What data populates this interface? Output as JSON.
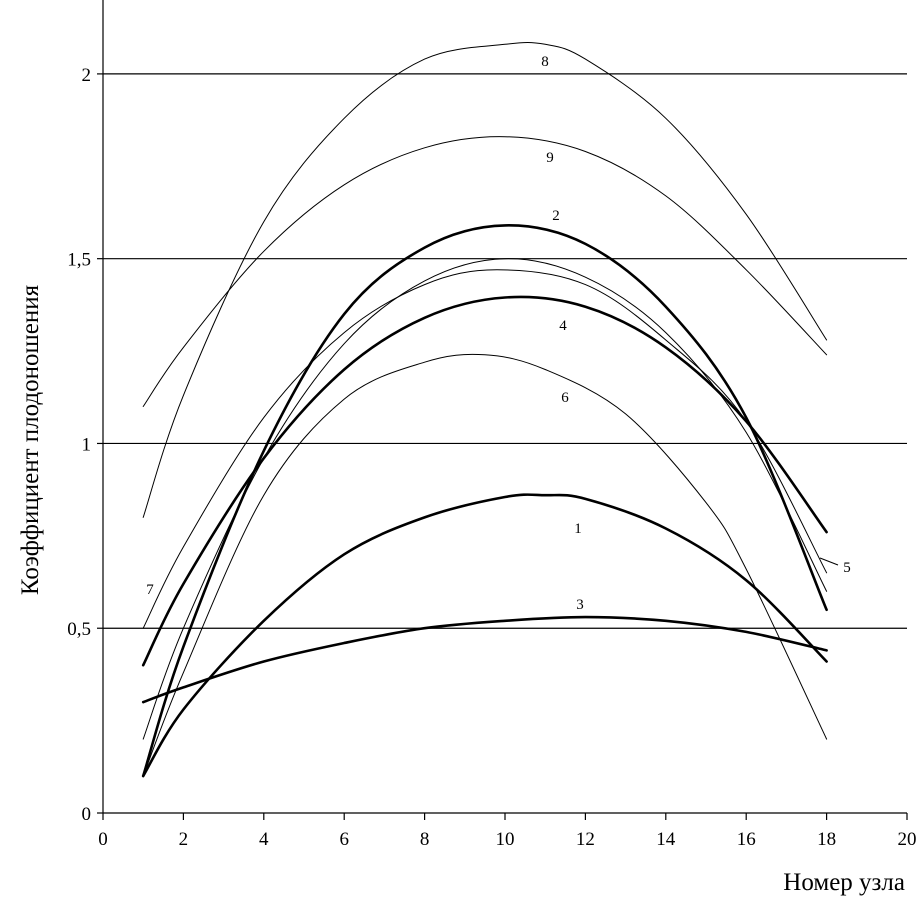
{
  "chart_data": {
    "type": "line",
    "title": "",
    "xlabel": "Номер узла",
    "ylabel": "Коэффициент плодоношения",
    "xlim": [
      0,
      20
    ],
    "ylim": [
      0,
      2.2
    ],
    "x_ticks": [
      {
        "value": 0,
        "label": "0"
      },
      {
        "value": 2,
        "label": "2"
      },
      {
        "value": 4,
        "label": "4"
      },
      {
        "value": 6,
        "label": "6"
      },
      {
        "value": 8,
        "label": "8"
      },
      {
        "value": 10,
        "label": "10"
      },
      {
        "value": 12,
        "label": "12"
      },
      {
        "value": 14,
        "label": "14"
      },
      {
        "value": 16,
        "label": "16"
      },
      {
        "value": 18,
        "label": "18"
      },
      {
        "value": 20,
        "label": "20"
      }
    ],
    "y_ticks": [
      {
        "value": 0,
        "label": "0"
      },
      {
        "value": 0.5,
        "label": "0,5"
      },
      {
        "value": 1,
        "label": "1"
      },
      {
        "value": 1.5,
        "label": "1,5"
      },
      {
        "value": 2,
        "label": "2"
      }
    ],
    "grid": "horizontal",
    "series": [
      {
        "label": "1",
        "color": "#000000",
        "width": 2.6,
        "points": [
          [
            1,
            0.1
          ],
          [
            2,
            0.28
          ],
          [
            4,
            0.52
          ],
          [
            6,
            0.7
          ],
          [
            8,
            0.8
          ],
          [
            10,
            0.855
          ],
          [
            11,
            0.86
          ],
          [
            12,
            0.85
          ],
          [
            14,
            0.77
          ],
          [
            16,
            0.63
          ],
          [
            18,
            0.41
          ]
        ]
      },
      {
        "label": "2",
        "color": "#000000",
        "width": 2.6,
        "points": [
          [
            1,
            0.1
          ],
          [
            2,
            0.45
          ],
          [
            4,
            0.98
          ],
          [
            6,
            1.35
          ],
          [
            8,
            1.53
          ],
          [
            10,
            1.59
          ],
          [
            12,
            1.54
          ],
          [
            14,
            1.37
          ],
          [
            16,
            1.07
          ],
          [
            18,
            0.55
          ]
        ]
      },
      {
        "label": "3",
        "color": "#000000",
        "width": 2.6,
        "points": [
          [
            1,
            0.3
          ],
          [
            2,
            0.34
          ],
          [
            4,
            0.41
          ],
          [
            6,
            0.46
          ],
          [
            8,
            0.5
          ],
          [
            10,
            0.52
          ],
          [
            12,
            0.53
          ],
          [
            14,
            0.52
          ],
          [
            16,
            0.49
          ],
          [
            18,
            0.44
          ]
        ]
      },
      {
        "label": "4",
        "color": "#000000",
        "width": 2.6,
        "points": [
          [
            1,
            0.4
          ],
          [
            2,
            0.62
          ],
          [
            4,
            0.96
          ],
          [
            6,
            1.2
          ],
          [
            8,
            1.34
          ],
          [
            10,
            1.395
          ],
          [
            12,
            1.37
          ],
          [
            14,
            1.26
          ],
          [
            16,
            1.06
          ],
          [
            18,
            0.76
          ]
        ]
      },
      {
        "label": "5",
        "color": "#000000",
        "width": 1.0,
        "points": [
          [
            1,
            0.2
          ],
          [
            2,
            0.5
          ],
          [
            4,
            0.96
          ],
          [
            6,
            1.27
          ],
          [
            8,
            1.44
          ],
          [
            10,
            1.5
          ],
          [
            12,
            1.45
          ],
          [
            14,
            1.3
          ],
          [
            16,
            1.03
          ],
          [
            18,
            0.6
          ]
        ]
      },
      {
        "label": "6",
        "color": "#000000",
        "width": 1.0,
        "points": [
          [
            1,
            0.1
          ],
          [
            2,
            0.38
          ],
          [
            4,
            0.86
          ],
          [
            6,
            1.12
          ],
          [
            8,
            1.22
          ],
          [
            9.5,
            1.24
          ],
          [
            11,
            1.2
          ],
          [
            13,
            1.08
          ],
          [
            15,
            0.84
          ],
          [
            16,
            0.66
          ],
          [
            18,
            0.2
          ]
        ]
      },
      {
        "label": "7",
        "color": "#000000",
        "width": 1.0,
        "points": [
          [
            1,
            0.5
          ],
          [
            2,
            0.72
          ],
          [
            4,
            1.07
          ],
          [
            6,
            1.3
          ],
          [
            8,
            1.43
          ],
          [
            9.8,
            1.47
          ],
          [
            12,
            1.43
          ],
          [
            14,
            1.28
          ],
          [
            16,
            1.06
          ],
          [
            18,
            0.65
          ]
        ]
      },
      {
        "label": "8",
        "color": "#000000",
        "width": 1.0,
        "points": [
          [
            1,
            0.8
          ],
          [
            2,
            1.13
          ],
          [
            4,
            1.6
          ],
          [
            6,
            1.88
          ],
          [
            8,
            2.04
          ],
          [
            10,
            2.08
          ],
          [
            11,
            2.08
          ],
          [
            12,
            2.04
          ],
          [
            14,
            1.88
          ],
          [
            16,
            1.62
          ],
          [
            18,
            1.28
          ]
        ]
      },
      {
        "label": "9",
        "color": "#000000",
        "width": 1.0,
        "points": [
          [
            1,
            1.1
          ],
          [
            2,
            1.26
          ],
          [
            4,
            1.52
          ],
          [
            6,
            1.7
          ],
          [
            8,
            1.8
          ],
          [
            10,
            1.83
          ],
          [
            12,
            1.79
          ],
          [
            14,
            1.67
          ],
          [
            16,
            1.47
          ],
          [
            18,
            1.24
          ]
        ]
      }
    ]
  }
}
